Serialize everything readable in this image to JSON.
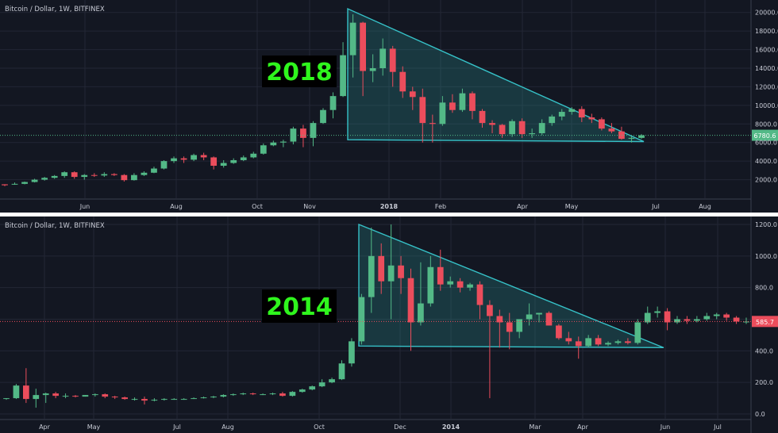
{
  "colors": {
    "background": "#131722",
    "grid": "#232735",
    "up": "#53b987",
    "down": "#eb4d5c",
    "triangle": "#36c2c8",
    "triangle_fill": "#2a8f8f",
    "axis_text": "#c9ccd6",
    "price_line": "#53b987",
    "year_label_text": "#2ff51d",
    "year_label_bg": "#000000",
    "divider": "#ffffff"
  },
  "chart_data": [
    {
      "type": "candlestick",
      "title": "Bitcoin / Dollar, 1W, BITFINEX",
      "annotation": "2018",
      "x_labels": [
        "Jun",
        "Aug",
        "Oct",
        "Nov",
        "2018",
        "Feb",
        "Apr",
        "May",
        "Jul",
        "Aug"
      ],
      "y_ticks": [
        "2000.0",
        "4000.0",
        "6000.0",
        "8000.0",
        "10000.0",
        "12000.0",
        "14000.0",
        "16000.0",
        "18000.0",
        "20000.0"
      ],
      "ylim": [
        0,
        21000
      ],
      "last_price": {
        "label": "6780.6",
        "value": 6780.6
      },
      "candles": [
        [
          1500,
          1500,
          1400,
          1300
        ],
        [
          1500,
          1700,
          1550,
          1450
        ],
        [
          1550,
          1800,
          1750,
          1500
        ],
        [
          1750,
          2100,
          2000,
          1700
        ],
        [
          2000,
          2300,
          2200,
          1900
        ],
        [
          2200,
          2500,
          2400,
          2100
        ],
        [
          2400,
          2900,
          2800,
          2200
        ],
        [
          2800,
          2900,
          2300,
          2100
        ],
        [
          2300,
          2600,
          2500,
          2000
        ],
        [
          2500,
          2700,
          2450,
          2300
        ],
        [
          2450,
          2800,
          2600,
          2300
        ],
        [
          2600,
          2700,
          2500,
          2400
        ],
        [
          2500,
          2600,
          1950,
          1800
        ],
        [
          1950,
          2700,
          2500,
          1900
        ],
        [
          2500,
          2900,
          2750,
          2400
        ],
        [
          2750,
          3400,
          3200,
          2700
        ],
        [
          3200,
          4100,
          4000,
          3100
        ],
        [
          4000,
          4500,
          4300,
          3800
        ],
        [
          4300,
          4500,
          4150,
          3800
        ],
        [
          4150,
          4800,
          4650,
          4000
        ],
        [
          4650,
          4900,
          4400,
          4100
        ],
        [
          4400,
          4500,
          3500,
          3100
        ],
        [
          3500,
          4100,
          3800,
          3300
        ],
        [
          3800,
          4300,
          4100,
          3700
        ],
        [
          4100,
          4600,
          4400,
          4000
        ],
        [
          4400,
          5000,
          4800,
          4300
        ],
        [
          4800,
          5900,
          5700,
          4700
        ],
        [
          5700,
          6200,
          6000,
          5600
        ],
        [
          6000,
          6300,
          6100,
          5500
        ],
        [
          6100,
          7700,
          7500,
          5800
        ],
        [
          7500,
          7900,
          6500,
          5500
        ],
        [
          6500,
          8300,
          8100,
          5600
        ],
        [
          8100,
          9700,
          9500,
          8000
        ],
        [
          9500,
          11400,
          11000,
          8600
        ],
        [
          11000,
          16800,
          15400,
          10900
        ],
        [
          15400,
          19800,
          18900,
          13000
        ],
        [
          18900,
          19000,
          13700,
          11000
        ],
        [
          13700,
          15500,
          14000,
          12500
        ],
        [
          14000,
          17200,
          16100,
          13200
        ],
        [
          16100,
          16400,
          13600,
          12000
        ],
        [
          13600,
          14200,
          11500,
          10800
        ],
        [
          11500,
          12000,
          10900,
          9500
        ],
        [
          10900,
          11800,
          8100,
          6000
        ],
        [
          8100,
          9000,
          8000,
          6000
        ],
        [
          8000,
          11000,
          10300,
          7800
        ],
        [
          10300,
          11200,
          9500,
          9200
        ],
        [
          9500,
          11800,
          11300,
          9300
        ],
        [
          11300,
          11500,
          9400,
          8500
        ],
        [
          9400,
          9600,
          8100,
          7600
        ],
        [
          8100,
          8400,
          7900,
          7000
        ],
        [
          7900,
          8000,
          6900,
          6500
        ],
        [
          6900,
          8500,
          8300,
          6600
        ],
        [
          8300,
          8600,
          6900,
          6500
        ],
        [
          6900,
          7500,
          7000,
          6500
        ],
        [
          7000,
          8500,
          8100,
          6800
        ],
        [
          8100,
          9000,
          8800,
          7800
        ],
        [
          8800,
          9600,
          9300,
          8400
        ],
        [
          9300,
          9800,
          9600,
          9000
        ],
        [
          9600,
          9900,
          8700,
          8200
        ],
        [
          8700,
          9100,
          8500,
          8100
        ],
        [
          8500,
          8700,
          7500,
          7300
        ],
        [
          7500,
          8100,
          7200,
          7000
        ],
        [
          7200,
          7700,
          6400,
          6300
        ],
        [
          6400,
          6700,
          6500,
          6000
        ],
        [
          6500,
          6900,
          6780,
          6400
        ]
      ]
    },
    {
      "type": "candlestick",
      "title": "Bitcoin / Dollar, 1W, BITFINEX",
      "annotation": "2014",
      "x_labels": [
        "Apr",
        "May",
        "Jul",
        "Aug",
        "Oct",
        "Dec",
        "2014",
        "Mar",
        "Apr",
        "Jun",
        "Jul"
      ],
      "y_ticks": [
        "0.0",
        "200.0",
        "400.0",
        "600.0",
        "800.0",
        "1000.0",
        "1200.0"
      ],
      "ylim": [
        -30,
        1230
      ],
      "last_price": {
        "label": "585.7",
        "value": 585.7
      },
      "candles": [
        [
          95,
          100,
          100,
          90
        ],
        [
          100,
          190,
          180,
          95
        ],
        [
          180,
          290,
          95,
          70
        ],
        [
          95,
          160,
          120,
          40
        ],
        [
          120,
          135,
          130,
          70
        ],
        [
          130,
          140,
          115,
          100
        ],
        [
          115,
          130,
          115,
          100
        ],
        [
          115,
          120,
          110,
          105
        ],
        [
          110,
          120,
          120,
          110
        ],
        [
          120,
          130,
          125,
          110
        ],
        [
          125,
          130,
          110,
          100
        ],
        [
          110,
          115,
          105,
          95
        ],
        [
          105,
          110,
          95,
          90
        ],
        [
          95,
          105,
          95,
          85
        ],
        [
          95,
          110,
          85,
          60
        ],
        [
          85,
          100,
          90,
          80
        ],
        [
          90,
          100,
          95,
          85
        ],
        [
          95,
          100,
          95,
          90
        ],
        [
          95,
          100,
          95,
          90
        ],
        [
          95,
          105,
          100,
          95
        ],
        [
          100,
          110,
          105,
          98
        ],
        [
          105,
          115,
          110,
          100
        ],
        [
          110,
          125,
          120,
          105
        ],
        [
          120,
          130,
          125,
          115
        ],
        [
          125,
          135,
          130,
          120
        ],
        [
          130,
          135,
          125,
          120
        ],
        [
          125,
          130,
          125,
          120
        ],
        [
          125,
          135,
          130,
          120
        ],
        [
          130,
          140,
          115,
          110
        ],
        [
          115,
          145,
          140,
          110
        ],
        [
          140,
          160,
          155,
          135
        ],
        [
          155,
          180,
          175,
          150
        ],
        [
          175,
          220,
          200,
          170
        ],
        [
          200,
          230,
          220,
          195
        ],
        [
          220,
          340,
          320,
          215
        ],
        [
          320,
          480,
          460,
          300
        ],
        [
          460,
          760,
          740,
          440
        ],
        [
          740,
          1180,
          1000,
          640
        ],
        [
          1000,
          1080,
          840,
          760
        ],
        [
          840,
          1200,
          940,
          600
        ],
        [
          940,
          1000,
          860,
          760
        ],
        [
          860,
          920,
          580,
          400
        ],
        [
          580,
          960,
          700,
          560
        ],
        [
          700,
          1000,
          930,
          680
        ],
        [
          930,
          1040,
          820,
          780
        ],
        [
          820,
          870,
          840,
          800
        ],
        [
          840,
          860,
          800,
          770
        ],
        [
          800,
          830,
          820,
          780
        ],
        [
          820,
          840,
          690,
          600
        ],
        [
          690,
          720,
          620,
          100
        ],
        [
          620,
          660,
          580,
          420
        ],
        [
          580,
          640,
          520,
          410
        ],
        [
          520,
          560,
          600,
          480
        ],
        [
          600,
          700,
          630,
          560
        ],
        [
          630,
          640,
          640,
          580
        ],
        [
          640,
          650,
          560,
          560
        ],
        [
          560,
          570,
          480,
          470
        ],
        [
          480,
          520,
          460,
          440
        ],
        [
          460,
          490,
          430,
          350
        ],
        [
          430,
          500,
          480,
          420
        ],
        [
          480,
          500,
          440,
          430
        ],
        [
          440,
          460,
          450,
          430
        ],
        [
          450,
          470,
          460,
          440
        ],
        [
          460,
          480,
          450,
          440
        ],
        [
          450,
          600,
          580,
          440
        ],
        [
          580,
          680,
          640,
          570
        ],
        [
          640,
          680,
          650,
          610
        ],
        [
          650,
          670,
          580,
          530
        ],
        [
          580,
          620,
          600,
          570
        ],
        [
          600,
          620,
          590,
          570
        ],
        [
          590,
          620,
          600,
          580
        ],
        [
          600,
          640,
          620,
          590
        ],
        [
          620,
          640,
          630,
          600
        ],
        [
          630,
          640,
          610,
          590
        ],
        [
          610,
          620,
          585,
          570
        ],
        [
          585,
          610,
          585,
          570
        ]
      ]
    }
  ]
}
